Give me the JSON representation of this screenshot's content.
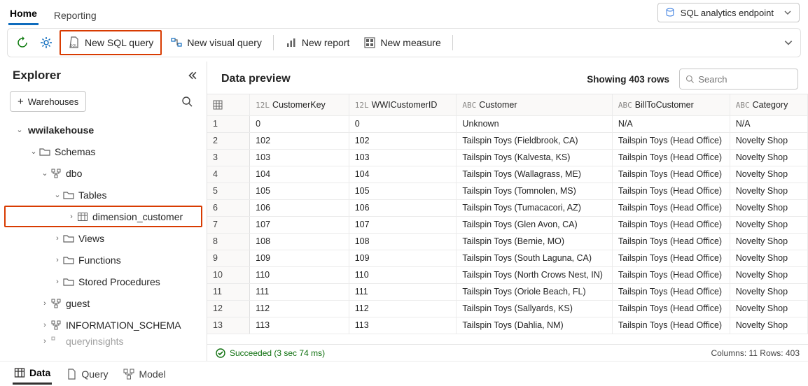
{
  "colors": {
    "accent": "#0f6cbd",
    "highlight": "#d83b01",
    "border": "#e0e0e0",
    "text": "#242424",
    "muted": "#616161",
    "success": "#0e700e"
  },
  "topTabs": {
    "home": "Home",
    "reporting": "Reporting"
  },
  "endpoint": {
    "label": "SQL analytics endpoint"
  },
  "toolbar": {
    "newSqlQuery": "New SQL query",
    "newVisualQuery": "New visual query",
    "newReport": "New report",
    "newMeasure": "New measure"
  },
  "explorer": {
    "title": "Explorer",
    "warehousesBtn": "Warehouses",
    "tree": {
      "lakehouse": "wwilakehouse",
      "schemas": "Schemas",
      "dbo": "dbo",
      "tables": "Tables",
      "dimension_customer": "dimension_customer",
      "views": "Views",
      "functions": "Functions",
      "storedProcedures": "Stored Procedures",
      "guest": "guest",
      "infoSchema": "INFORMATION_SCHEMA",
      "queryInsights": "queryinsights"
    }
  },
  "preview": {
    "title": "Data preview",
    "showingRows": "Showing 403 rows",
    "searchPlaceholder": "Search",
    "columns": {
      "c1": {
        "type": "12L",
        "name": "CustomerKey"
      },
      "c2": {
        "type": "12L",
        "name": "WWICustomerID"
      },
      "c3": {
        "type": "ABC",
        "name": "Customer"
      },
      "c4": {
        "type": "ABC",
        "name": "BillToCustomer"
      },
      "c5": {
        "type": "ABC",
        "name": "Category"
      }
    },
    "rows": [
      {
        "n": "1",
        "k": "0",
        "id": "0",
        "cust": "Unknown",
        "bill": "N/A",
        "cat": "N/A"
      },
      {
        "n": "2",
        "k": "102",
        "id": "102",
        "cust": "Tailspin Toys (Fieldbrook, CA)",
        "bill": "Tailspin Toys (Head Office)",
        "cat": "Novelty Shop"
      },
      {
        "n": "3",
        "k": "103",
        "id": "103",
        "cust": "Tailspin Toys (Kalvesta, KS)",
        "bill": "Tailspin Toys (Head Office)",
        "cat": "Novelty Shop"
      },
      {
        "n": "4",
        "k": "104",
        "id": "104",
        "cust": "Tailspin Toys (Wallagrass, ME)",
        "bill": "Tailspin Toys (Head Office)",
        "cat": "Novelty Shop"
      },
      {
        "n": "5",
        "k": "105",
        "id": "105",
        "cust": "Tailspin Toys (Tomnolen, MS)",
        "bill": "Tailspin Toys (Head Office)",
        "cat": "Novelty Shop"
      },
      {
        "n": "6",
        "k": "106",
        "id": "106",
        "cust": "Tailspin Toys (Tumacacori, AZ)",
        "bill": "Tailspin Toys (Head Office)",
        "cat": "Novelty Shop"
      },
      {
        "n": "7",
        "k": "107",
        "id": "107",
        "cust": "Tailspin Toys (Glen Avon, CA)",
        "bill": "Tailspin Toys (Head Office)",
        "cat": "Novelty Shop"
      },
      {
        "n": "8",
        "k": "108",
        "id": "108",
        "cust": "Tailspin Toys (Bernie, MO)",
        "bill": "Tailspin Toys (Head Office)",
        "cat": "Novelty Shop"
      },
      {
        "n": "9",
        "k": "109",
        "id": "109",
        "cust": "Tailspin Toys (South Laguna, CA)",
        "bill": "Tailspin Toys (Head Office)",
        "cat": "Novelty Shop"
      },
      {
        "n": "10",
        "k": "110",
        "id": "110",
        "cust": "Tailspin Toys (North Crows Nest, IN)",
        "bill": "Tailspin Toys (Head Office)",
        "cat": "Novelty Shop"
      },
      {
        "n": "11",
        "k": "111",
        "id": "111",
        "cust": "Tailspin Toys (Oriole Beach, FL)",
        "bill": "Tailspin Toys (Head Office)",
        "cat": "Novelty Shop"
      },
      {
        "n": "12",
        "k": "112",
        "id": "112",
        "cust": "Tailspin Toys (Sallyards, KS)",
        "bill": "Tailspin Toys (Head Office)",
        "cat": "Novelty Shop"
      },
      {
        "n": "13",
        "k": "113",
        "id": "113",
        "cust": "Tailspin Toys (Dahlia, NM)",
        "bill": "Tailspin Toys (Head Office)",
        "cat": "Novelty Shop"
      }
    ],
    "columnWidths": {
      "rownum": 60,
      "c1": 140,
      "c2": 152,
      "c3": 220,
      "c4": 166,
      "c5": 110
    }
  },
  "status": {
    "succeeded": "Succeeded (3 sec 74 ms)",
    "footer": "Columns: 11 Rows: 403"
  },
  "bottom": {
    "data": "Data",
    "query": "Query",
    "model": "Model"
  }
}
